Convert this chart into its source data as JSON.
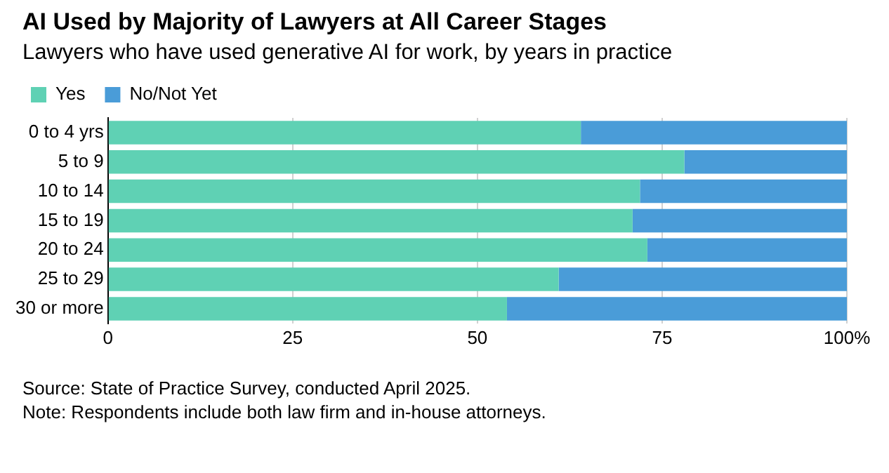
{
  "chart_data": {
    "type": "bar",
    "orientation": "horizontal",
    "stacked": true,
    "title": "AI Used by Majority of Lawyers at All Career Stages",
    "subtitle": "Lawyers who have used generative AI for work, by years in practice",
    "categories": [
      "0 to 4 yrs",
      "5 to 9",
      "10 to 14",
      "15 to 19",
      "20 to 24",
      "25 to 29",
      "30 or more"
    ],
    "series": [
      {
        "name": "Yes",
        "color": "#5fd1b4",
        "values": [
          64,
          78,
          72,
          71,
          73,
          61,
          54
        ]
      },
      {
        "name": "No/Not Yet",
        "color": "#4a9cd8",
        "values": [
          36,
          22,
          28,
          29,
          27,
          39,
          46
        ]
      }
    ],
    "xlim": [
      0,
      100
    ],
    "xticks": [
      0,
      25,
      50,
      75,
      {
        "value": 100,
        "label": "100%"
      }
    ],
    "grid": "x",
    "legend": "top left",
    "annotations": [
      "Source: State of Practice Survey, conducted April 2025.",
      "Note: Respondents include both law firm and in-house attorneys."
    ]
  }
}
